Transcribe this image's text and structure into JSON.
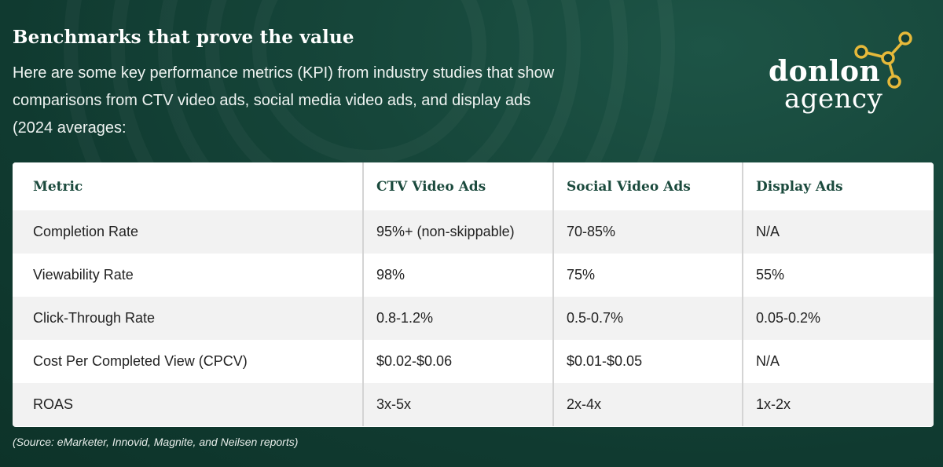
{
  "header": {
    "title": "Benchmarks that prove the value",
    "intro": "Here are some key performance metrics (KPI) from industry studies that show comparisons from CTV video ads, social media video ads, and display ads (2024 averages:"
  },
  "logo": {
    "line1": "donlon",
    "line2": "agency",
    "accent": "#e6b93a"
  },
  "table": {
    "headers": [
      "Metric",
      "CTV Video Ads",
      "Social Video Ads",
      "Display Ads"
    ],
    "rows": [
      [
        "Completion Rate",
        "95%+ (non-skippable)",
        "70-85%",
        "N/A"
      ],
      [
        "Viewability Rate",
        "98%",
        "75%",
        "55%"
      ],
      [
        "Click-Through Rate",
        "0.8-1.2%",
        "0.5-0.7%",
        "0.05-0.2%"
      ],
      [
        "Cost Per Completed View (CPCV)",
        "$0.02-$0.06",
        "$0.01-$0.05",
        "N/A"
      ],
      [
        "ROAS",
        "3x-5x",
        "2x-4x",
        "1x-2x"
      ]
    ]
  },
  "footer": {
    "source": "(Source: eMarketer, Innovid, Magnite, and Neilsen reports)"
  },
  "colors": {
    "background": "#16463a",
    "heading_text": "#1b4a3d",
    "row_alt": "#f2f2f2"
  }
}
